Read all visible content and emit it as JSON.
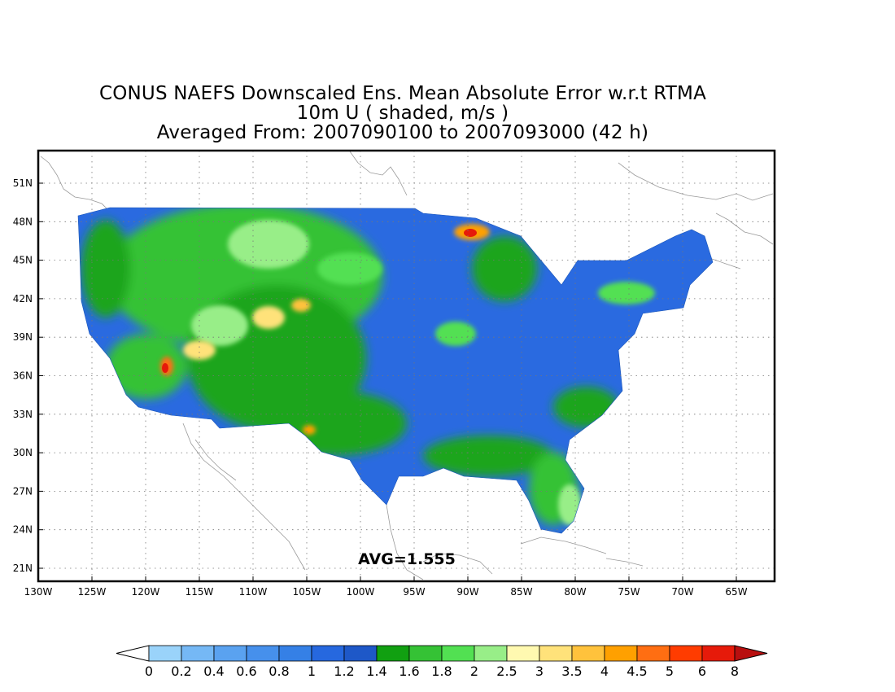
{
  "title": {
    "line1": "CONUS NAEFS Downscaled Ens. Mean Absolute Error w.r.t RTMA",
    "line2": "10m U ( shaded, m/s )",
    "line3": "Averaged From: 2007090100 to 2007093000 (42 h)"
  },
  "map": {
    "lat_ticks": [
      "51N",
      "48N",
      "45N",
      "42N",
      "39N",
      "36N",
      "33N",
      "30N",
      "27N",
      "24N",
      "21N"
    ],
    "lon_ticks": [
      "130W",
      "125W",
      "120W",
      "115W",
      "110W",
      "105W",
      "100W",
      "95W",
      "90W",
      "85W",
      "80W",
      "75W",
      "70W",
      "65W"
    ],
    "avg_label": "AVG=1.555",
    "grid": true,
    "projection": "lat-lon"
  },
  "colorbar": {
    "labels": [
      "0",
      "0.2",
      "0.4",
      "0.6",
      "0.8",
      "1",
      "1.2",
      "1.4",
      "1.6",
      "1.8",
      "2",
      "2.5",
      "3",
      "3.5",
      "4",
      "4.5",
      "5",
      "6",
      "8"
    ],
    "colors": [
      "#9ad3fa",
      "#75b8f5",
      "#5aa2f0",
      "#4690ec",
      "#3580e6",
      "#2668df",
      "#1e58c8",
      "#11a011",
      "#35c235",
      "#52e052",
      "#98ee88",
      "#fff9b0",
      "#ffe27a",
      "#ffc23c",
      "#ffa000",
      "#ff6e12",
      "#ff3c00",
      "#e61a0a"
    ],
    "under_color": "#ffffff",
    "over_color": "#b80f0f"
  },
  "palette": {
    "land_dominant": "#2a6ae0",
    "land_secondary": "#1fa51f",
    "high_error": "#ffa000",
    "peak_error": "#e61a0a",
    "coastline": "#999999",
    "grid": "#888888"
  }
}
